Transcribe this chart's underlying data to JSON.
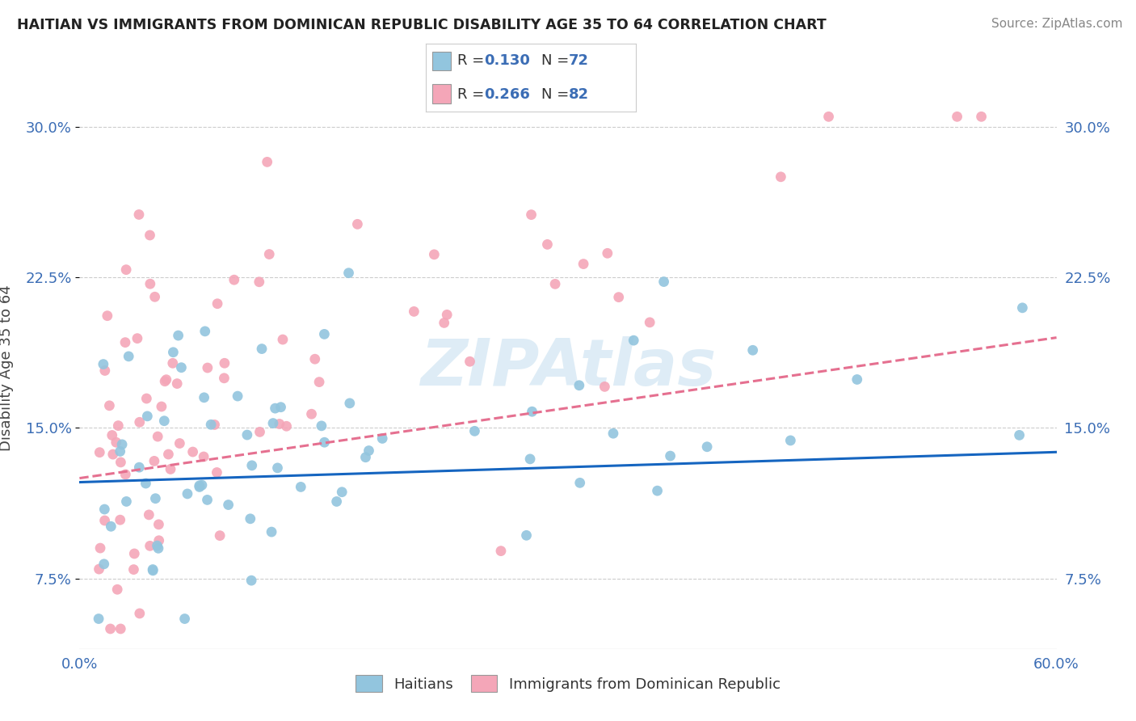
{
  "title": "HAITIAN VS IMMIGRANTS FROM DOMINICAN REPUBLIC DISABILITY AGE 35 TO 64 CORRELATION CHART",
  "source": "Source: ZipAtlas.com",
  "ylabel": "Disability Age 35 to 64",
  "xmin": 0.0,
  "xmax": 0.6,
  "ymin": 0.04,
  "ymax": 0.32,
  "yticks": [
    0.075,
    0.15,
    0.225,
    0.3
  ],
  "ytick_labels": [
    "7.5%",
    "15.0%",
    "22.5%",
    "30.0%"
  ],
  "legend_r1": "0.130",
  "legend_n1": "72",
  "legend_r2": "0.266",
  "legend_n2": "82",
  "color_blue": "#92c5de",
  "color_pink": "#f4a6b8",
  "line_color_blue": "#1565c0",
  "line_color_pink": "#e57090",
  "watermark": "ZIPAtlas",
  "blue_line_y0": 0.123,
  "blue_line_y1": 0.138,
  "pink_line_y0": 0.125,
  "pink_line_y1": 0.195
}
